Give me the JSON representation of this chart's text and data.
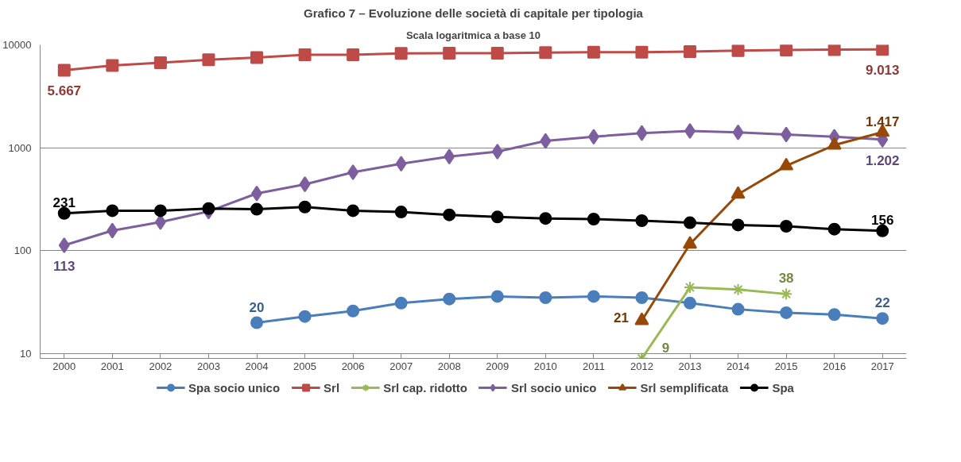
{
  "chart_data": {
    "type": "line",
    "title": "Grafico 7 – Evoluzione delle società di capitale per tipologia",
    "subtitle": "Scala logaritmica a base 10",
    "categories": [
      "2000",
      "2001",
      "2002",
      "2003",
      "2004",
      "2005",
      "2006",
      "2007",
      "2008",
      "2009",
      "2010",
      "2011",
      "2012",
      "2013",
      "2014",
      "2015",
      "2016",
      "2017"
    ],
    "log": "y",
    "ylim": [
      9,
      10000
    ],
    "yticks": [
      10,
      100,
      1000,
      10000
    ],
    "grid": "y",
    "legend": "bottom",
    "line_style": "solid",
    "series": [
      {
        "name": "Spa socio unico",
        "color": "#4a7ebb",
        "marker": "circle",
        "values": [
          null,
          null,
          null,
          null,
          20,
          23,
          26,
          31,
          34,
          36,
          35,
          36,
          35,
          31,
          27,
          25,
          24,
          22
        ],
        "value_labels": [
          null,
          null,
          null,
          null,
          "20",
          null,
          null,
          null,
          null,
          null,
          null,
          null,
          null,
          null,
          null,
          null,
          null,
          "22"
        ]
      },
      {
        "name": "Srl",
        "color": "#be4b48",
        "marker": "square",
        "values": [
          5667,
          6300,
          6700,
          7160,
          7520,
          8000,
          8000,
          8260,
          8300,
          8300,
          8400,
          8500,
          8500,
          8600,
          8800,
          8900,
          9000,
          9013
        ],
        "value_labels": [
          "5.667",
          null,
          null,
          null,
          null,
          null,
          null,
          null,
          null,
          null,
          null,
          null,
          null,
          null,
          null,
          null,
          null,
          "9.013"
        ]
      },
      {
        "name": "Srl cap. ridotto",
        "color": "#98b954",
        "marker": "cross",
        "values": [
          null,
          null,
          null,
          null,
          null,
          null,
          null,
          null,
          null,
          null,
          null,
          null,
          9,
          44,
          42,
          38,
          null,
          null
        ],
        "value_labels": [
          null,
          null,
          null,
          null,
          null,
          null,
          null,
          null,
          null,
          null,
          null,
          null,
          "9",
          null,
          null,
          "38",
          null,
          null
        ]
      },
      {
        "name": "Srl socio unico",
        "color": "#7d5fa0",
        "marker": "diamond",
        "values": [
          113,
          157,
          190,
          241,
          360,
          442,
          579,
          701,
          822,
          919,
          1165,
          1282,
          1390,
          1458,
          1413,
          1346,
          1282,
          1202
        ],
        "value_labels": [
          "113",
          null,
          null,
          null,
          null,
          null,
          null,
          null,
          null,
          null,
          null,
          null,
          null,
          null,
          null,
          null,
          null,
          "1.202"
        ]
      },
      {
        "name": "Srl semplificata",
        "color": "#984807",
        "marker": "triangle",
        "values": [
          null,
          null,
          null,
          null,
          null,
          null,
          null,
          null,
          null,
          null,
          null,
          null,
          21,
          116,
          354,
          668,
          1062,
          1417
        ],
        "value_labels": [
          null,
          null,
          null,
          null,
          null,
          null,
          null,
          null,
          null,
          null,
          null,
          null,
          "21",
          null,
          null,
          null,
          null,
          "1.417"
        ]
      },
      {
        "name": "Spa",
        "color": "#000000",
        "marker": "circle",
        "values": [
          231,
          245,
          245,
          257,
          253,
          266,
          245,
          238,
          223,
          213,
          206,
          203,
          196,
          187,
          178,
          173,
          162,
          156
        ],
        "value_labels": [
          "231",
          null,
          null,
          null,
          null,
          null,
          null,
          null,
          null,
          null,
          null,
          null,
          null,
          null,
          null,
          null,
          null,
          "156"
        ]
      }
    ]
  }
}
